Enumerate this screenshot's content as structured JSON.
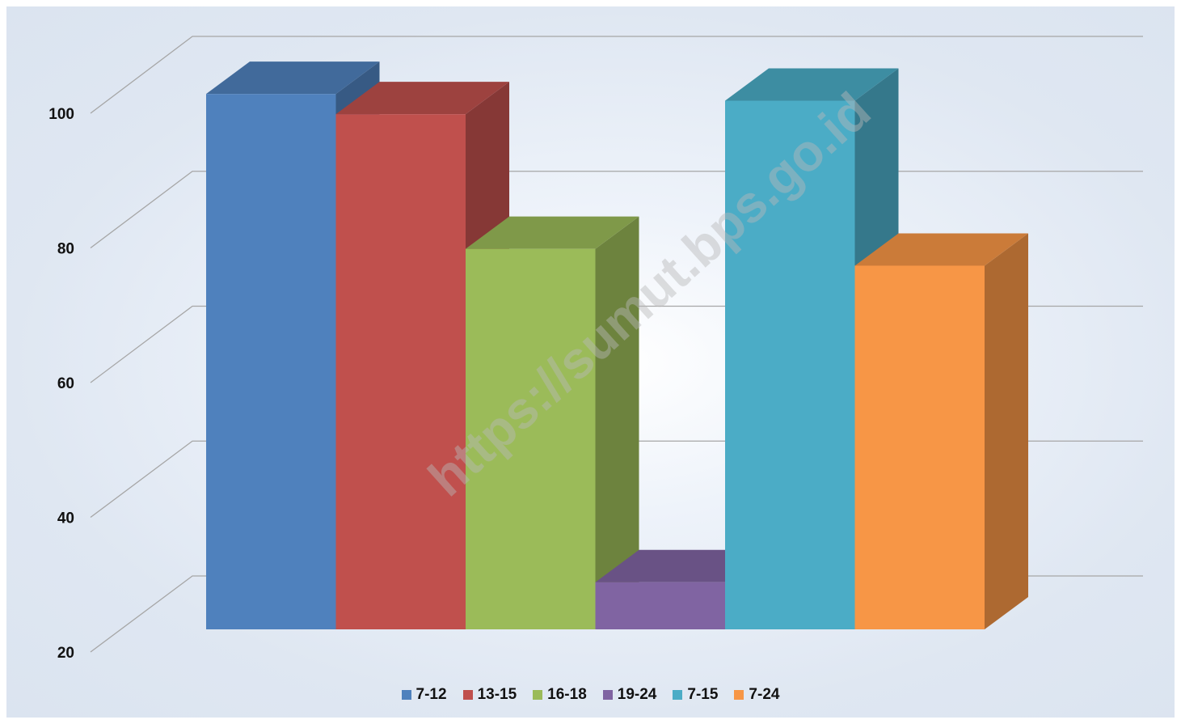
{
  "chart_data": {
    "type": "bar",
    "title": "",
    "xlabel": "",
    "ylabel": "",
    "ylim": [
      20,
      100
    ],
    "yticks": [
      "20",
      "40",
      "60",
      "80",
      "100"
    ],
    "grid": true,
    "legend_position": "bottom",
    "categories": [
      "7-12",
      "13-15",
      "16-18",
      "19-24",
      "7-15",
      "7-24"
    ],
    "values": [
      99.5,
      96.5,
      76.5,
      27,
      98.5,
      74
    ],
    "colors": [
      "#4f81bd",
      "#c0504d",
      "#9bbb59",
      "#8064a2",
      "#4bacc6",
      "#f79646"
    ],
    "watermark": "https://sumut.bps.go.id"
  }
}
